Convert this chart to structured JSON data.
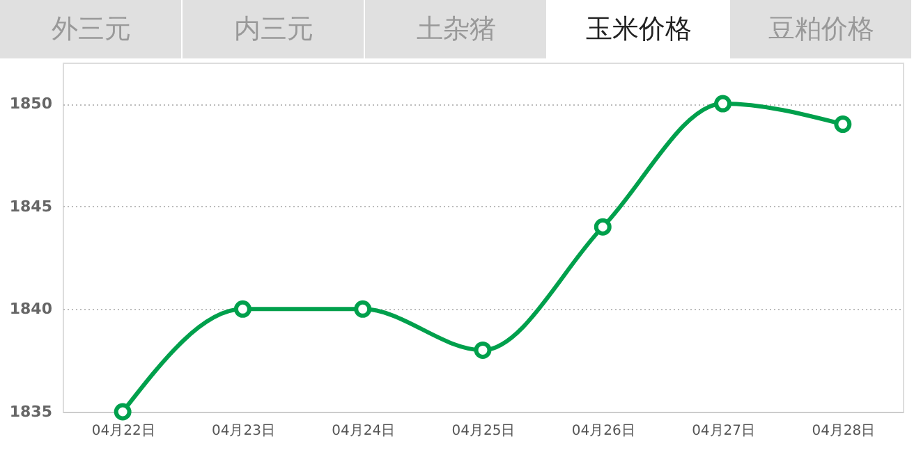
{
  "chart_data": {
    "type": "line",
    "title": "玉米价格",
    "annotations": [
      "外三元",
      "内三元",
      "土杂猪",
      "豆粕价格"
    ],
    "categories": [
      "04月22日",
      "04月23日",
      "04月24日",
      "04月25日",
      "04月26日",
      "04月27日",
      "04月28日"
    ],
    "series": [
      {
        "color": "#00a04c",
        "values": [
          1835,
          1840,
          1840,
          1838,
          1844,
          1850,
          1849
        ]
      }
    ],
    "ylim": [
      1835,
      1852
    ],
    "yticks": [
      1835,
      1840,
      1845,
      1850
    ],
    "grid": "y",
    "marker": "circle",
    "line_style": "solid"
  }
}
